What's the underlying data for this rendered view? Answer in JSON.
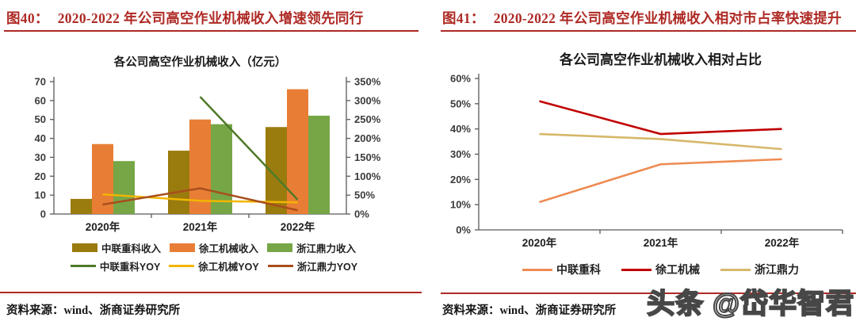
{
  "page": {
    "watermark": "头条 @岱华智君",
    "accent_red": "#AE2A25"
  },
  "fig40": {
    "caption_label": "图40：",
    "caption_text": "2020-2022 年公司高空作业机械收入增速领先同行",
    "source": "资料来源：wind、浙商证券研究所"
  },
  "fig41": {
    "caption_label": "图41：",
    "caption_text": "2020-2022 年公司高空作业机械收入相对市占率快速提升",
    "source": "资料来源：wind、浙商证券研究所"
  },
  "chart_data": [
    {
      "type": "bar+line",
      "title": "各公司高空作业机械收入（亿元）",
      "categories": [
        "2020年",
        "2021年",
        "2022年"
      ],
      "bar_series": [
        {
          "name": "中联重科收入",
          "color": "#9A7B0E",
          "values": [
            8,
            33.5,
            46
          ]
        },
        {
          "name": "徐工机械收入",
          "color": "#E87E35",
          "values": [
            37,
            50,
            66
          ]
        },
        {
          "name": "浙江鼎力收入",
          "color": "#76A646",
          "values": [
            28,
            47.5,
            52
          ]
        }
      ],
      "line_series": [
        {
          "name": "中联重科YOY",
          "color": "#4F7A28",
          "values": [
            null,
            310,
            38
          ]
        },
        {
          "name": "徐工机械YOY",
          "color": "#F2B600",
          "values": [
            52,
            35,
            31
          ]
        },
        {
          "name": "浙江鼎力YOY",
          "color": "#A84E1C",
          "values": [
            25,
            68,
            10
          ]
        }
      ],
      "y_left": {
        "min": 0,
        "max": 70,
        "step": 10,
        "suffix": ""
      },
      "y_right": {
        "min": 0,
        "max": 350,
        "step": 50,
        "suffix": "%"
      },
      "legend_position": "bottom",
      "grid": false
    },
    {
      "type": "line",
      "title": "各公司高空作业机械收入相对占比",
      "categories": [
        "2020年",
        "2021年",
        "2022年"
      ],
      "series": [
        {
          "name": "中联重科",
          "color": "#EE8B52",
          "values": [
            11,
            26,
            28
          ]
        },
        {
          "name": "徐工机械",
          "color": "#C00000",
          "values": [
            51,
            38,
            40
          ]
        },
        {
          "name": "浙江鼎力",
          "color": "#D6B86A",
          "values": [
            38,
            36,
            32
          ]
        }
      ],
      "y": {
        "min": 0,
        "max": 60,
        "step": 10,
        "suffix": "%"
      },
      "legend_position": "bottom",
      "grid": false
    }
  ]
}
